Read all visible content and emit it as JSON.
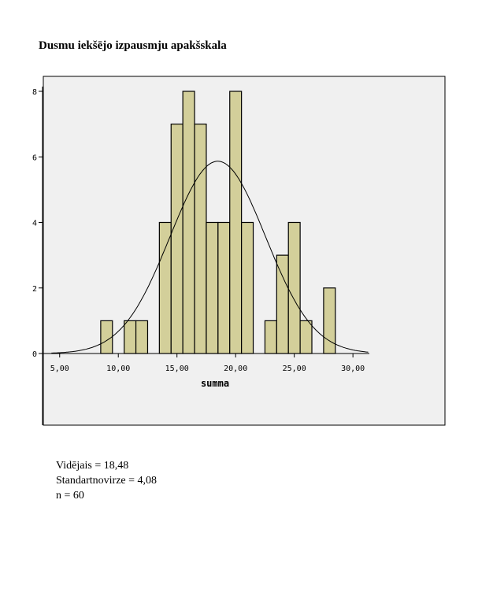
{
  "chart_data": {
    "type": "bar",
    "title": "Dusmu iekšējo izpausmju apakšskala",
    "xlabel": "summa",
    "ylabel": "",
    "bins": [
      9,
      11,
      12,
      14,
      15,
      16,
      17,
      18,
      19,
      20,
      21,
      23,
      24,
      25,
      26,
      28
    ],
    "bin_width": 1,
    "values": [
      1,
      1,
      1,
      4,
      7,
      8,
      7,
      4,
      4,
      8,
      4,
      1,
      3,
      4,
      1,
      2
    ],
    "xlim": [
      3.54,
      31.4
    ],
    "ylim": [
      0,
      8
    ],
    "xticks": [
      5,
      10,
      15,
      20,
      25,
      30
    ],
    "xtick_labels": [
      "5,00",
      "10,00",
      "15,00",
      "20,00",
      "25,00",
      "30,00"
    ],
    "yticks": [
      0,
      2,
      4,
      6,
      8
    ],
    "ytick_labels": [
      "0",
      "2",
      "4",
      "6",
      "8"
    ],
    "normal_curve": {
      "mean": 18.48,
      "sd": 4.08,
      "n": 60
    },
    "bar_color": "#d3cf9a",
    "background": "#f0f0f0",
    "grid": false
  },
  "stats": {
    "mean_label": "Vidējais = 18,48",
    "sd_label": "Standartnovirze = 4,08",
    "n_label": "n = 60"
  }
}
